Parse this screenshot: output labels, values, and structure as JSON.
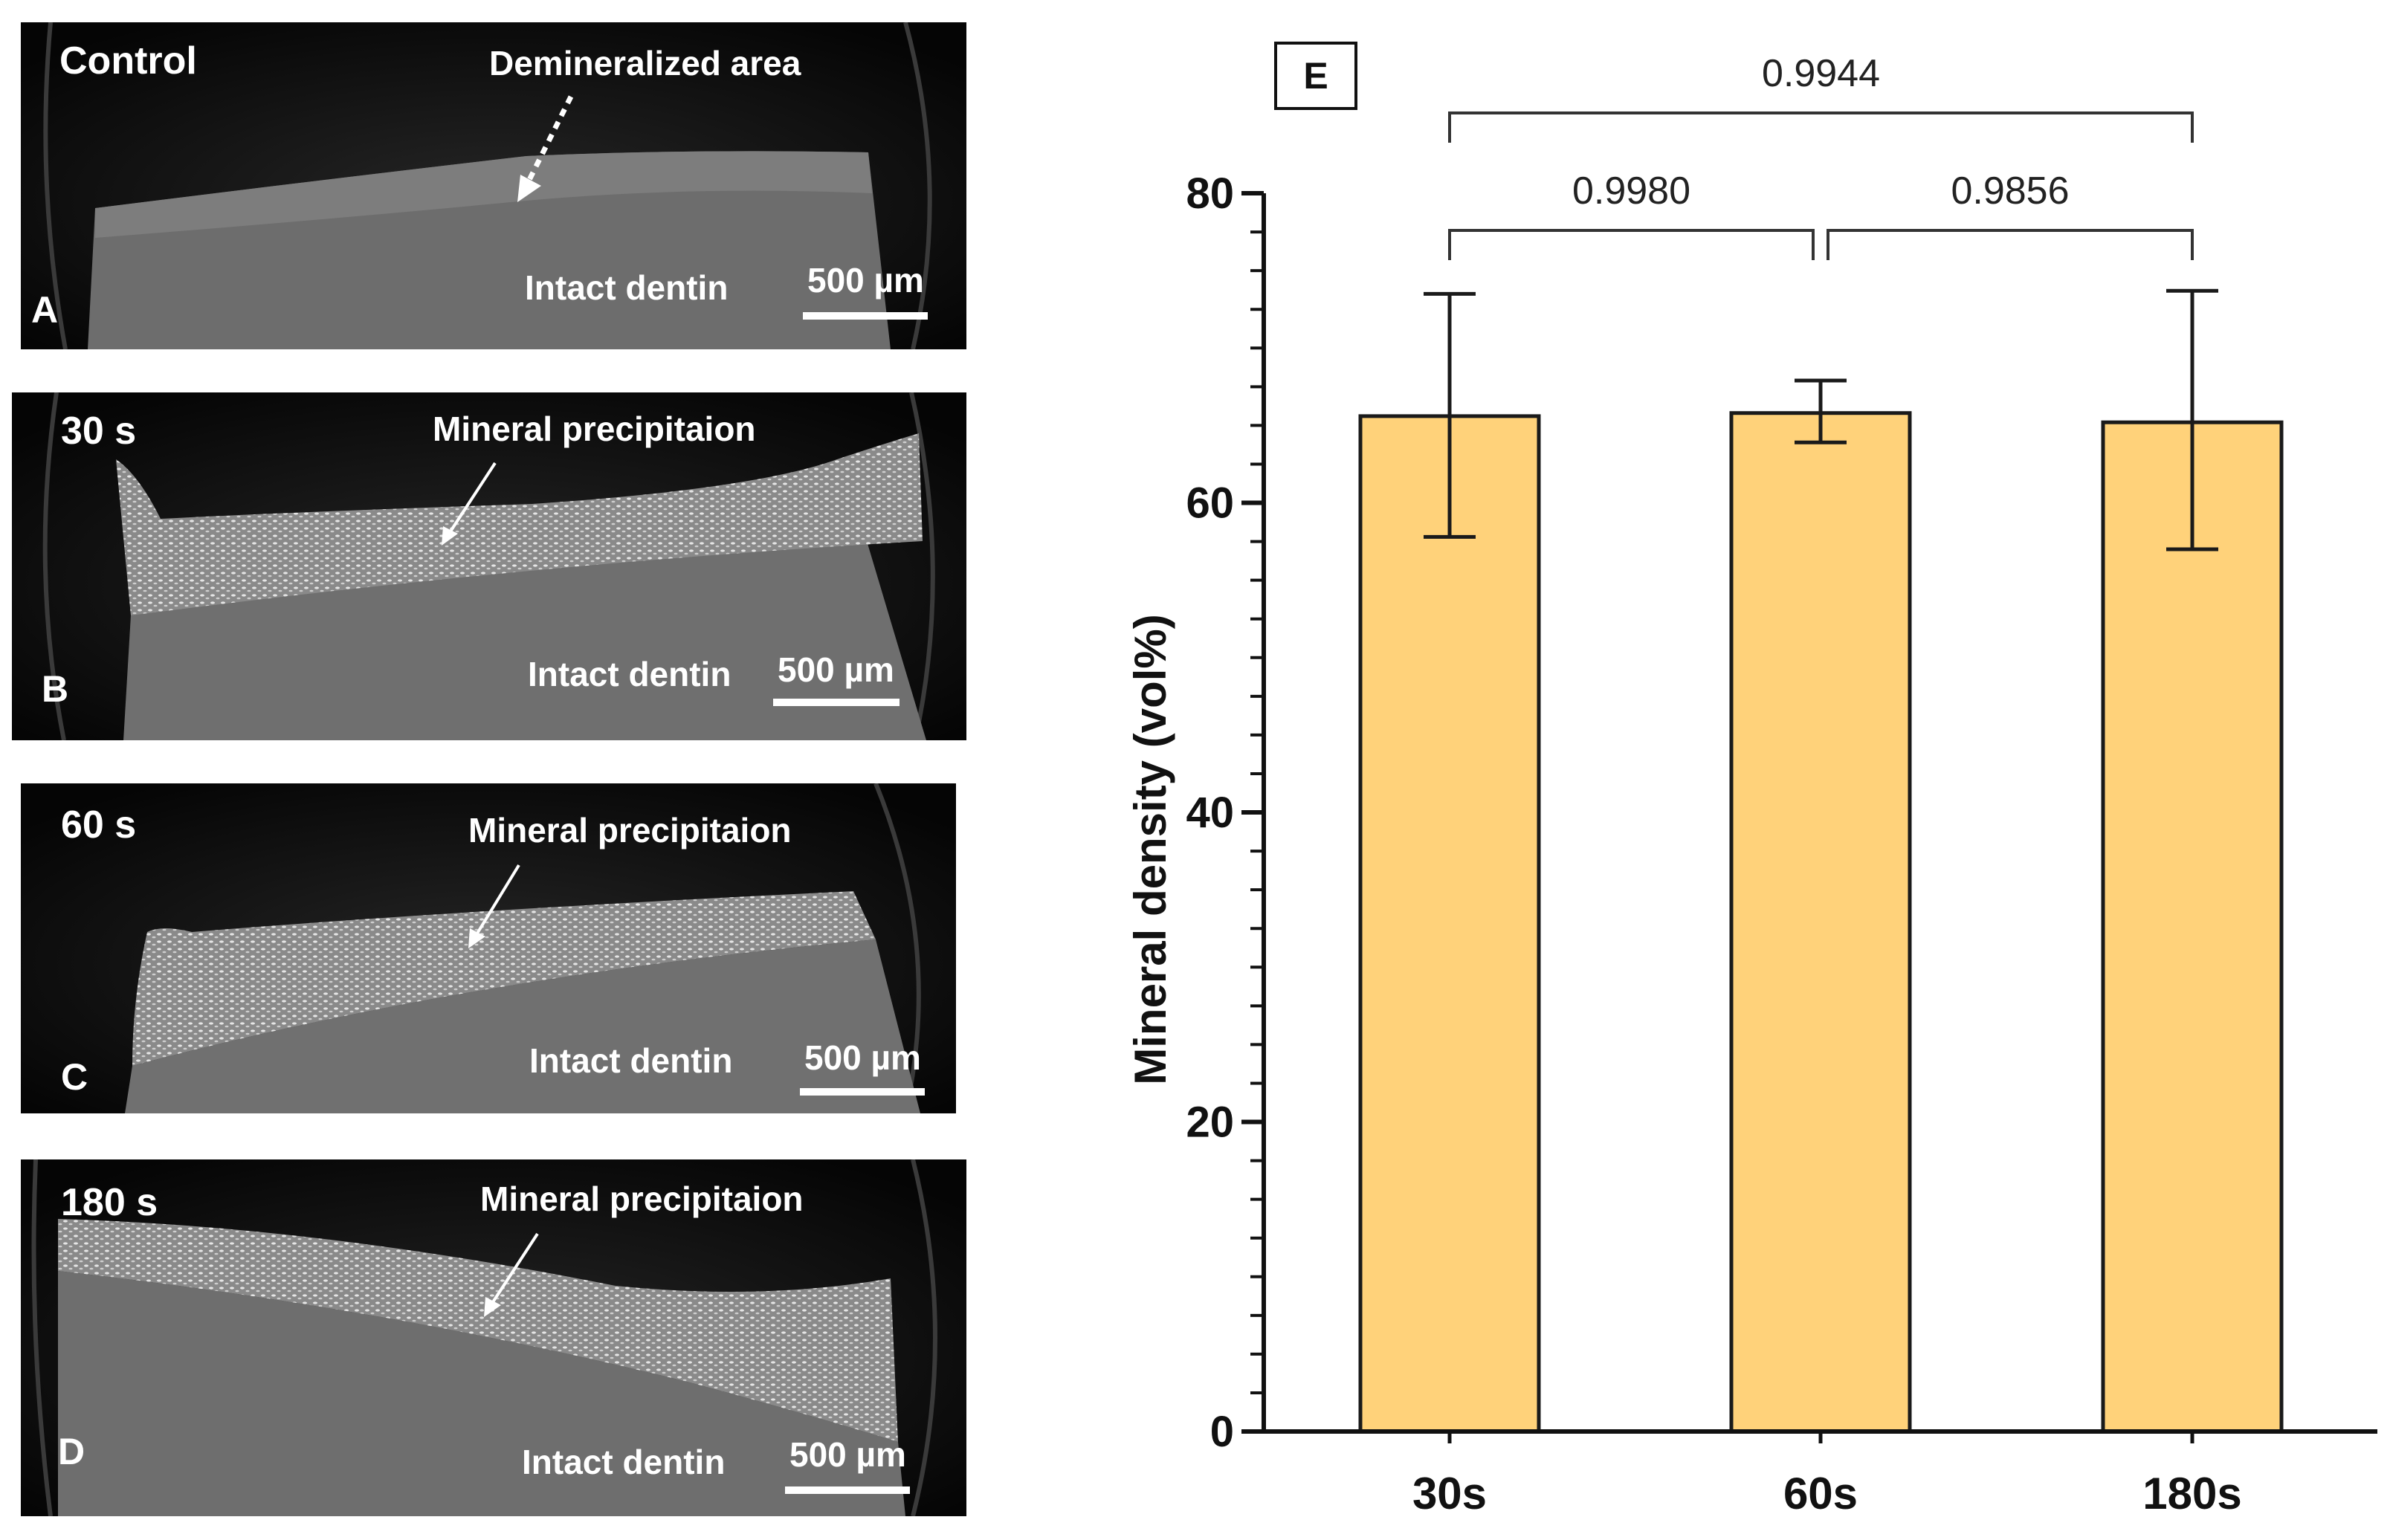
{
  "panels": [
    {
      "letter": "A",
      "condition": "Control",
      "annotation": "Demineralized area",
      "region": "Intact dentin",
      "scale": "500 µm"
    },
    {
      "letter": "B",
      "condition": "30 s",
      "annotation": "Mineral precipitaion",
      "region": "Intact dentin",
      "scale": "500 µm"
    },
    {
      "letter": "C",
      "condition": "60 s",
      "annotation": "Mineral precipitaion",
      "region": "Intact dentin",
      "scale": "500 µm"
    },
    {
      "letter": "D",
      "condition": "180 s",
      "annotation": "Mineral precipitaion",
      "region": "Intact dentin",
      "scale": "500 µm"
    }
  ],
  "chart_data": {
    "type": "bar",
    "panel_label": "E",
    "categories": [
      "30s",
      "60s",
      "180s"
    ],
    "values": [
      65.6,
      65.8,
      65.2
    ],
    "error_low": [
      57.8,
      63.9,
      57.0
    ],
    "error_high": [
      73.5,
      67.9,
      73.7
    ],
    "ylabel": "Mineral density (vol%)",
    "xlabel": "",
    "ylim": [
      0,
      80
    ],
    "yticks": [
      "0",
      "20",
      "40",
      "60",
      "80"
    ],
    "bar_color": "#FFD27A",
    "comparisons": [
      {
        "from": 0,
        "to": 1,
        "label": "0.9980"
      },
      {
        "from": 1,
        "to": 2,
        "label": "0.9856"
      },
      {
        "from": 0,
        "to": 2,
        "label": "0.9944"
      }
    ],
    "grid": false,
    "legend": "none"
  }
}
